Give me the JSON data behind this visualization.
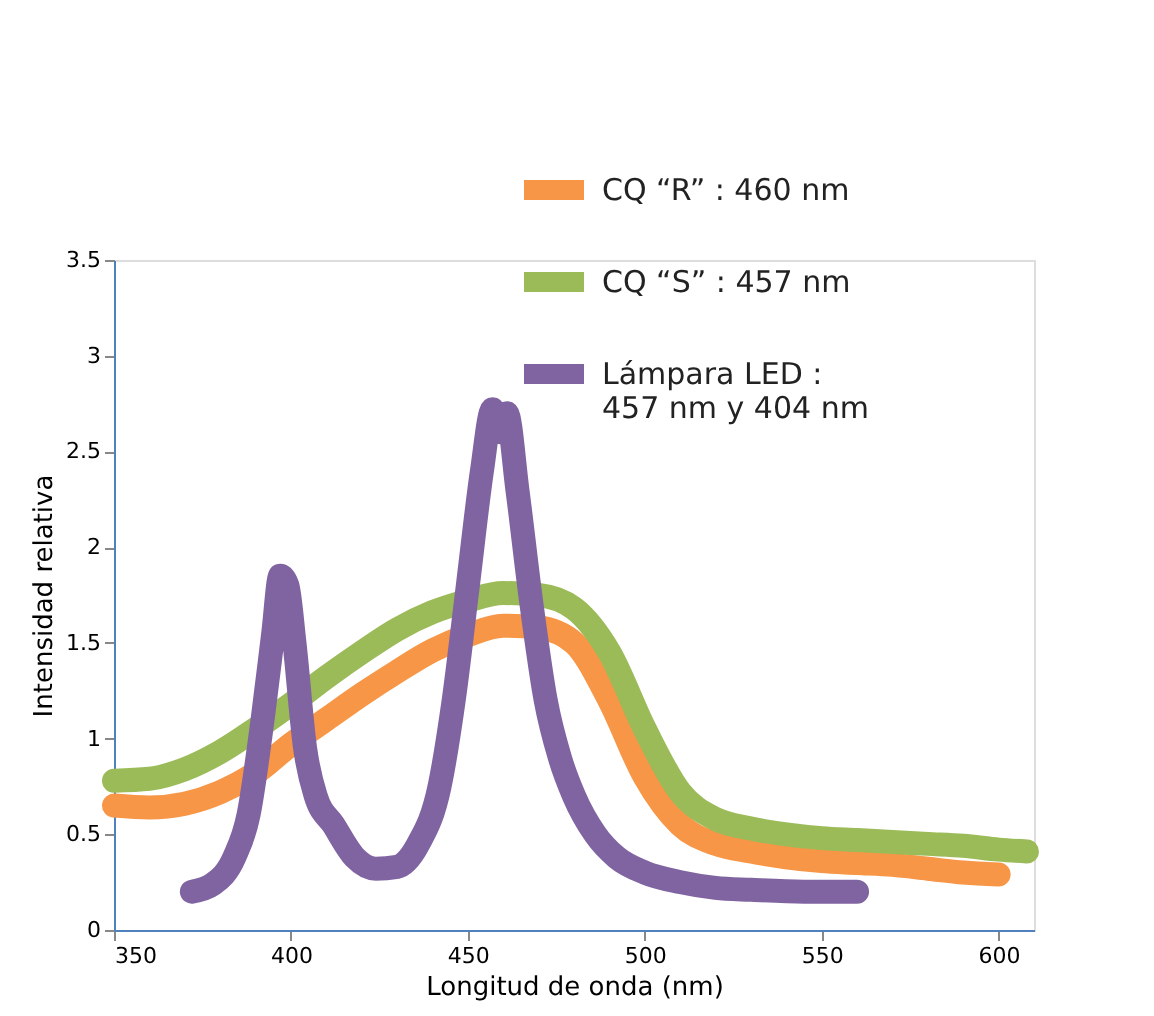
{
  "chart_data": {
    "type": "line",
    "xlabel": "Longitud de onda (nm)",
    "ylabel": "Intensidad relativa",
    "xlim": [
      350,
      610
    ],
    "xticks": [
      350,
      400,
      450,
      500,
      550,
      600
    ],
    "ylim": [
      0,
      3.5
    ],
    "yticks": [
      0,
      0.5,
      1,
      1.5,
      2,
      2.5,
      3,
      3.5
    ],
    "grid": false,
    "legend": "top right",
    "marker": "none",
    "line_style": "solid",
    "series": [
      {
        "name": "CQ “R” : 460 nm",
        "color": "#f79646",
        "x": [
          350,
          360,
          370,
          380,
          390,
          400,
          410,
          420,
          430,
          440,
          450,
          460,
          470,
          480,
          490,
          500,
          510,
          520,
          530,
          540,
          550,
          560,
          570,
          580,
          590,
          600
        ],
        "values": [
          0.65,
          0.64,
          0.66,
          0.72,
          0.82,
          0.97,
          1.1,
          1.23,
          1.35,
          1.46,
          1.54,
          1.59,
          1.58,
          1.5,
          1.2,
          0.8,
          0.55,
          0.45,
          0.41,
          0.38,
          0.36,
          0.35,
          0.34,
          0.32,
          0.3,
          0.29
        ]
      },
      {
        "name": "CQ “S” : 457 nm",
        "color": "#9bbb59",
        "x": [
          350,
          360,
          370,
          380,
          390,
          400,
          410,
          420,
          430,
          440,
          450,
          460,
          470,
          480,
          490,
          500,
          510,
          520,
          530,
          540,
          550,
          560,
          570,
          580,
          590,
          600,
          608
        ],
        "values": [
          0.78,
          0.79,
          0.84,
          0.93,
          1.05,
          1.18,
          1.32,
          1.45,
          1.57,
          1.66,
          1.72,
          1.76,
          1.75,
          1.68,
          1.45,
          1.05,
          0.72,
          0.58,
          0.53,
          0.5,
          0.48,
          0.47,
          0.46,
          0.45,
          0.44,
          0.42,
          0.41
        ]
      },
      {
        "name": "Lámpara LED :\n457 nm y 404 nm",
        "color": "#8064a2",
        "x": [
          372,
          378,
          384,
          388,
          392,
          395,
          397,
          399,
          401,
          404,
          407,
          412,
          418,
          424,
          430,
          436,
          442,
          446,
          450,
          454,
          457,
          459,
          461,
          464,
          468,
          472,
          476,
          480,
          486,
          492,
          500,
          510,
          520,
          530,
          545,
          560
        ],
        "values": [
          0.2,
          0.24,
          0.38,
          0.6,
          1.1,
          1.55,
          1.85,
          1.8,
          1.5,
          0.95,
          0.7,
          0.55,
          0.38,
          0.32,
          0.33,
          0.45,
          0.75,
          1.2,
          1.8,
          2.4,
          2.72,
          2.6,
          2.7,
          2.3,
          1.7,
          1.2,
          0.9,
          0.7,
          0.5,
          0.38,
          0.3,
          0.25,
          0.22,
          0.21,
          0.2,
          0.2
        ]
      }
    ]
  }
}
